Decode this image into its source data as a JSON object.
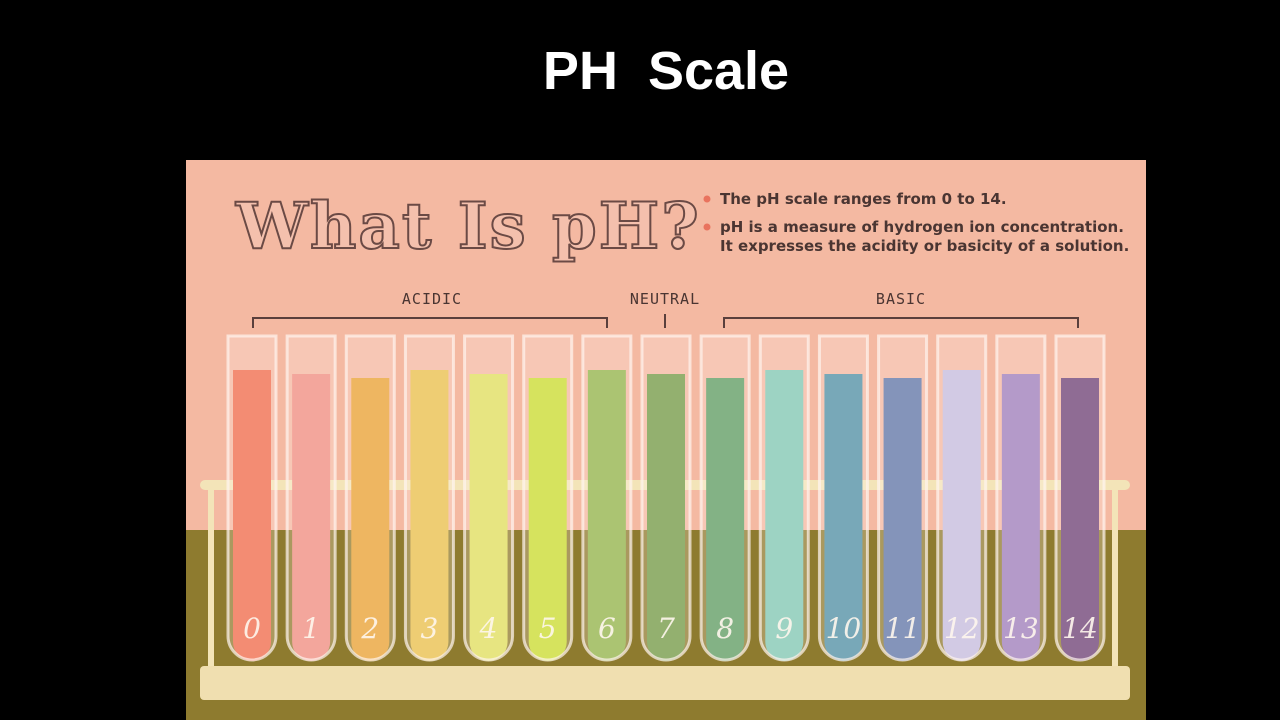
{
  "header": {
    "title": "PH  Scale"
  },
  "illustration": {
    "title": "What Is pH?",
    "bullets": [
      [
        "The pH scale ranges from 0 to 14."
      ],
      [
        "pH is a measure of hydrogen ion concentration.",
        "It expresses the acidity or basicity of a solution."
      ]
    ],
    "groups": [
      "ACIDIC",
      "NEUTRAL",
      "BASIC"
    ],
    "tubes": [
      {
        "label": "0",
        "color": "#ef6a4a"
      },
      {
        "label": "1",
        "color": "#ef8c80"
      },
      {
        "label": "2",
        "color": "#e9a232"
      },
      {
        "label": "3",
        "color": "#e8c14a"
      },
      {
        "label": "4",
        "color": "#dfe05c"
      },
      {
        "label": "5",
        "color": "#c9de2e"
      },
      {
        "label": "6",
        "color": "#8fb548"
      },
      {
        "label": "7",
        "color": "#6f9a45"
      },
      {
        "label": "8",
        "color": "#5a9c62"
      },
      {
        "label": "9",
        "color": "#7dc8b5"
      },
      {
        "label": "10",
        "color": "#4b8fa6"
      },
      {
        "label": "11",
        "color": "#5b74a8"
      },
      {
        "label": "12",
        "color": "#c3bce0"
      },
      {
        "label": "13",
        "color": "#9b7cbc"
      },
      {
        "label": "14",
        "color": "#6a3f76"
      }
    ]
  }
}
